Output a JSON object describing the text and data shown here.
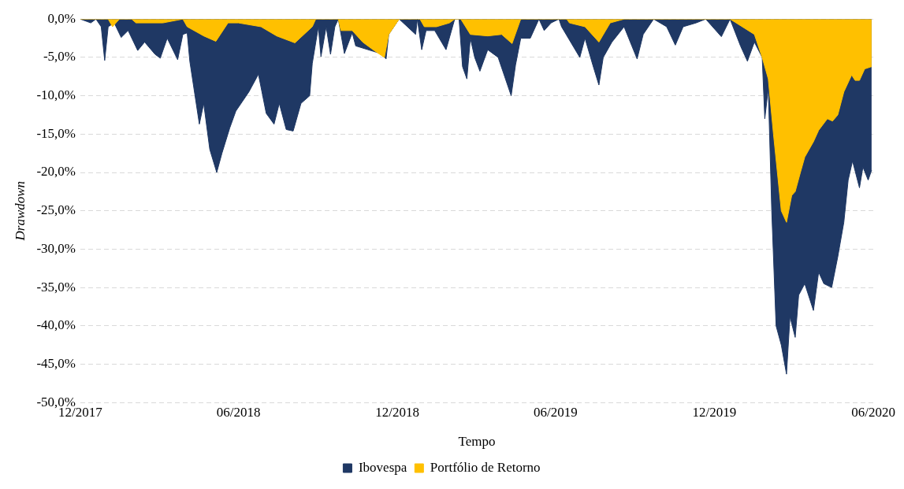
{
  "chart_data": {
    "type": "area",
    "xlabel": "Tempo",
    "ylabel": "Drawdown",
    "ylim": [
      -50,
      0
    ],
    "yticks": [
      {
        "value": -50,
        "label": "-50,0%"
      },
      {
        "value": -45,
        "label": "-45,0%"
      },
      {
        "value": -40,
        "label": "-40,0%"
      },
      {
        "value": -35,
        "label": "-35,0%"
      },
      {
        "value": -30,
        "label": "-30,0%"
      },
      {
        "value": -25,
        "label": "-25,0%"
      },
      {
        "value": -20,
        "label": "-20,0%"
      },
      {
        "value": -15,
        "label": "-15,0%"
      },
      {
        "value": -10,
        "label": "-10,0%"
      },
      {
        "value": -5,
        "label": "-5,0%"
      },
      {
        "value": 0,
        "label": "0,0%"
      }
    ],
    "xlim": [
      "2017-12-01",
      "2020-06-01"
    ],
    "xticks": [
      {
        "value": "2017-12-01",
        "label": "12/2017"
      },
      {
        "value": "2018-06-01",
        "label": "06/2018"
      },
      {
        "value": "2018-12-01",
        "label": "12/2018"
      },
      {
        "value": "2019-06-01",
        "label": "06/2019"
      },
      {
        "value": "2019-12-01",
        "label": "12/2019"
      },
      {
        "value": "2020-06-01",
        "label": "06/2020"
      }
    ],
    "grid": "y",
    "legend": "bottom",
    "series": [
      {
        "name": "Ibovespa",
        "color": "#1f3864",
        "x": [
          "2017-12-01",
          "2017-12-13",
          "2017-12-19",
          "2017-12-25",
          "2017-12-29",
          "2018-01-02",
          "2018-01-09",
          "2018-01-17",
          "2018-01-25",
          "2018-02-05",
          "2018-02-13",
          "2018-02-25",
          "2018-03-03",
          "2018-03-11",
          "2018-03-23",
          "2018-03-29",
          "2018-04-03",
          "2018-04-06",
          "2018-04-17",
          "2018-04-22",
          "2018-04-29",
          "2018-05-07",
          "2018-05-13",
          "2018-05-22",
          "2018-05-29",
          "2018-06-13",
          "2018-06-24",
          "2018-07-03",
          "2018-07-12",
          "2018-07-18",
          "2018-07-26",
          "2018-08-03",
          "2018-08-12",
          "2018-08-22",
          "2018-08-25",
          "2018-09-01",
          "2018-09-04",
          "2018-09-10",
          "2018-09-15",
          "2018-09-20",
          "2018-09-24",
          "2018-10-01",
          "2018-10-10",
          "2018-10-14",
          "2018-11-03",
          "2018-11-12",
          "2018-11-18",
          "2018-11-21",
          "2018-12-03",
          "2018-12-22",
          "2018-12-24",
          "2018-12-29",
          "2019-01-03",
          "2019-01-13",
          "2019-01-26",
          "2019-02-05",
          "2019-02-10",
          "2019-02-14",
          "2019-02-19",
          "2019-02-23",
          "2019-02-28",
          "2019-03-06",
          "2019-03-15",
          "2019-03-27",
          "2019-04-11",
          "2019-04-16",
          "2019-04-22",
          "2019-05-03",
          "2019-05-13",
          "2019-05-19",
          "2019-05-27",
          "2019-06-05",
          "2019-06-08",
          "2019-06-29",
          "2019-07-05",
          "2019-07-14",
          "2019-07-21",
          "2019-07-26",
          "2019-08-05",
          "2019-08-19",
          "2019-09-03",
          "2019-09-10",
          "2019-09-22",
          "2019-10-07",
          "2019-10-17",
          "2019-10-26",
          "2019-11-10",
          "2019-11-21",
          "2019-12-09",
          "2019-12-19",
          "2019-12-31",
          "2020-01-08",
          "2020-01-16",
          "2020-01-25",
          "2020-01-28",
          "2020-02-01",
          "2020-02-05",
          "2020-02-10",
          "2020-02-16",
          "2020-02-22",
          "2020-02-26",
          "2020-03-03",
          "2020-03-07",
          "2020-03-14",
          "2020-03-24",
          "2020-03-30",
          "2020-04-05",
          "2020-04-14",
          "2020-04-21",
          "2020-04-28",
          "2020-05-03",
          "2020-05-08",
          "2020-05-16",
          "2020-05-20",
          "2020-05-26",
          "2020-05-30"
        ],
        "values": [
          0,
          -0.5,
          0,
          -1,
          -5.4,
          -1,
          -0.5,
          -2.4,
          -1.5,
          -4.1,
          -3,
          -4.6,
          -5.1,
          -2.5,
          -5.3,
          -2,
          -1.8,
          -5.5,
          -13.7,
          -11,
          -17,
          -20,
          -17.5,
          -14.2,
          -12,
          -9.5,
          -7.2,
          -12.3,
          -13.7,
          -11,
          -14.4,
          -14.6,
          -11,
          -10,
          -5.8,
          -1,
          -4.9,
          -1,
          -4.6,
          -1,
          0,
          -4.5,
          -1.8,
          -3.5,
          -4.2,
          -4.5,
          -5.2,
          -2,
          0,
          -2,
          0,
          -4,
          -1.5,
          -1.5,
          -4,
          0,
          0,
          -6.2,
          -7.8,
          -2.5,
          -5,
          -6.8,
          -4,
          -5,
          -10,
          -6,
          -2.5,
          -2.5,
          0,
          -1.5,
          -0.5,
          0,
          -1,
          -5,
          -2.5,
          -6,
          -8.6,
          -5,
          -3,
          -1,
          -5.2,
          -2,
          0,
          -1,
          -3.4,
          -1,
          -0.5,
          0,
          -2.3,
          0,
          -3.5,
          -5.5,
          -3,
          -5,
          -13,
          -9,
          -25,
          -40,
          -42.5,
          -46.3,
          -38.8,
          -41.5,
          -36,
          -34.5,
          -38,
          -33,
          -34.5,
          -35,
          -31,
          -26.5,
          -21,
          -18.5,
          -22,
          -19.3,
          -21,
          -19.7
        ]
      },
      {
        "name": "Portfólio de Retorno",
        "color": "#ffc000",
        "x": [
          "2017-12-01",
          "2018-01-02",
          "2018-01-07",
          "2018-01-15",
          "2018-01-29",
          "2018-02-03",
          "2018-03-06",
          "2018-03-29",
          "2018-04-03",
          "2018-04-22",
          "2018-05-06",
          "2018-05-20",
          "2018-06-01",
          "2018-06-27",
          "2018-07-15",
          "2018-08-05",
          "2018-08-25",
          "2018-08-29",
          "2018-09-24",
          "2018-09-27",
          "2018-10-10",
          "2018-10-22",
          "2018-11-03",
          "2018-11-16",
          "2018-11-21",
          "2018-12-03",
          "2018-12-27",
          "2019-01-01",
          "2019-01-15",
          "2019-01-30",
          "2019-02-05",
          "2019-02-12",
          "2019-02-23",
          "2019-03-15",
          "2019-03-31",
          "2019-04-12",
          "2019-04-22",
          "2019-06-14",
          "2019-06-17",
          "2019-07-05",
          "2019-07-21",
          "2019-08-03",
          "2019-08-19",
          "2019-12-19",
          "2020-01-16",
          "2020-01-25",
          "2020-02-01",
          "2020-02-07",
          "2020-02-16",
          "2020-02-22",
          "2020-02-28",
          "2020-03-03",
          "2020-03-09",
          "2020-03-14",
          "2020-03-24",
          "2020-03-30",
          "2020-04-09",
          "2020-04-15",
          "2020-04-21",
          "2020-04-28",
          "2020-05-07",
          "2020-05-11",
          "2020-05-16",
          "2020-05-22",
          "2020-05-30"
        ],
        "values": [
          0,
          0,
          -1,
          0,
          0,
          -0.5,
          -0.5,
          0,
          -1,
          -2.2,
          -2.9,
          -0.5,
          -0.5,
          -1,
          -2.2,
          -3.1,
          -1,
          0,
          0,
          -1.5,
          -1.5,
          -3,
          -4,
          -5,
          -2,
          0,
          0,
          -1,
          -1,
          -0.5,
          0,
          0,
          -2,
          -2.2,
          -2,
          -3.2,
          0,
          0,
          -0.5,
          -1,
          -3,
          -0.5,
          0,
          0,
          -2,
          -5,
          -7.8,
          -15,
          -25,
          -26.5,
          -23,
          -22.5,
          -20,
          -18,
          -16,
          -14.5,
          -13,
          -13.3,
          -12.5,
          -9.5,
          -7.3,
          -8,
          -8,
          -6.5,
          -6.2
        ]
      }
    ]
  }
}
